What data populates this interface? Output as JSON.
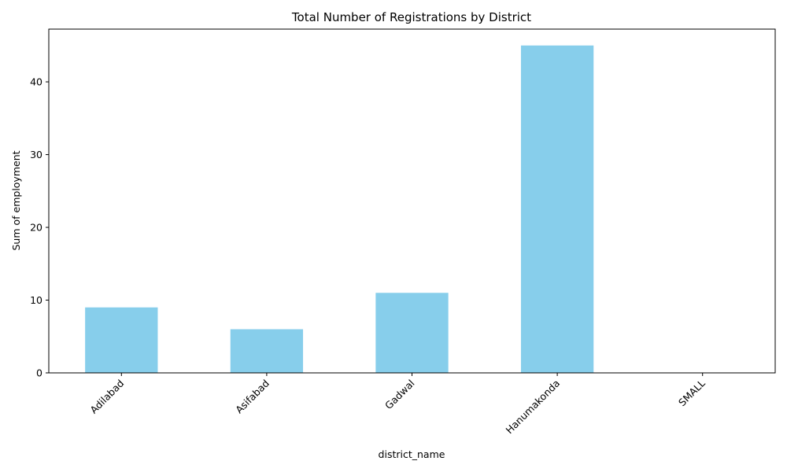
{
  "chart_data": {
    "type": "bar",
    "title": "Total Number of Registrations by District",
    "xlabel": "district_name",
    "ylabel": "Sum of employment",
    "categories": [
      "Adilabad",
      "Asifabad",
      "Gadwal",
      "Hanumakonda",
      "SMALL"
    ],
    "values": [
      9,
      6,
      11,
      45,
      0
    ],
    "ylim": [
      0,
      47.25
    ],
    "yticks": [
      0,
      10,
      20,
      30,
      40
    ],
    "grid": false,
    "legend": "none",
    "bar_color": "#87ceeb"
  }
}
